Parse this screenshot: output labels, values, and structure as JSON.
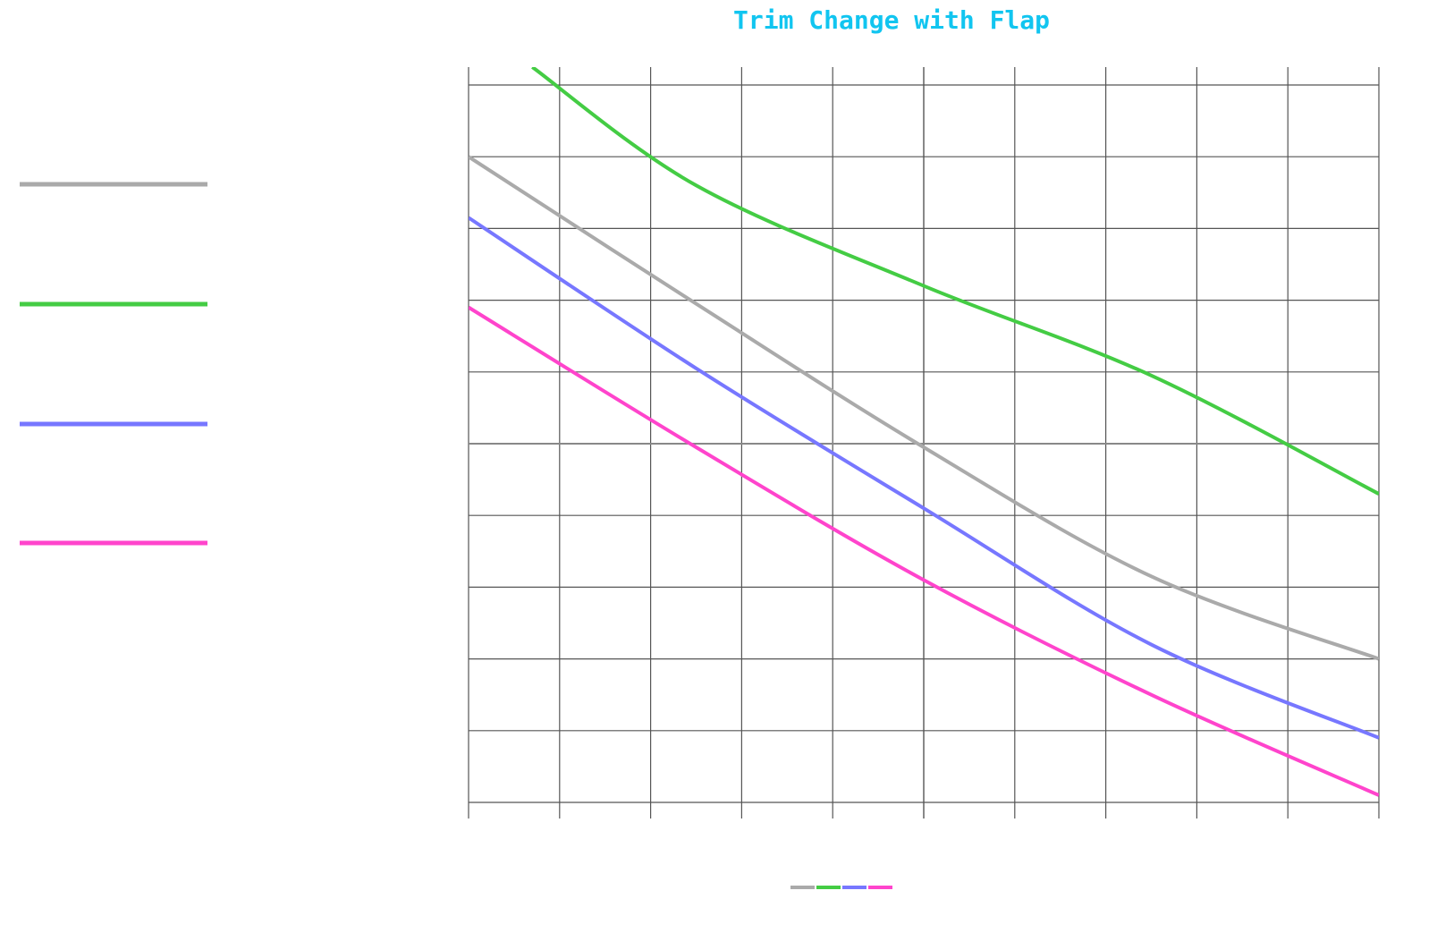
{
  "chart_data": {
    "type": "line",
    "title": "Trim Change with Flap",
    "xlabel": "",
    "ylabel": "",
    "xlim": [
      -5,
      5
    ],
    "ylim": [
      -5,
      5
    ],
    "grid": true,
    "legend_placement": "left",
    "series": [
      {
        "color": "#aaaaaa",
        "x": [
          -5,
          -2.5,
          0,
          2.5,
          5
        ],
        "y": [
          4,
          1.95,
          -0.05,
          -1.85,
          -3
        ]
      },
      {
        "color": "#44cc44",
        "x": [
          -4.3,
          -2.5,
          0,
          2.5,
          5
        ],
        "y": [
          5.25,
          3.6,
          2.2,
          0.95,
          -0.7
        ]
      },
      {
        "color": "#7777ff",
        "x": [
          -5,
          -2.5,
          0,
          2.5,
          5
        ],
        "y": [
          3.15,
          1.05,
          -0.9,
          -2.8,
          -4.1
        ]
      },
      {
        "color": "#ff44cc",
        "x": [
          -5,
          -2.5,
          0,
          2.5,
          5
        ],
        "y": [
          1.9,
          -0.05,
          -1.9,
          -3.5,
          -4.9
        ]
      }
    ]
  }
}
